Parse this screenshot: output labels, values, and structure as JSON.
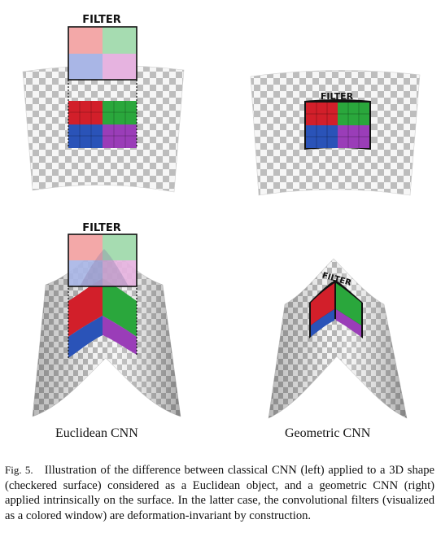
{
  "panels": {
    "top_left": {
      "filter_label": "FILTER"
    },
    "top_right": {
      "filter_label": "FILTER"
    },
    "bottom_left": {
      "filter_label": "FILTER"
    },
    "bottom_right": {
      "filter_label": "FILTER"
    }
  },
  "captions": {
    "left": "Euclidean CNN",
    "right": "Geometric CNN"
  },
  "figure_caption": {
    "label": "Fig. 5.",
    "text": "Illustration of the difference between classical CNN (left) applied to a 3D shape (checkered surface) considered as a Euclidean object, and a geometric CNN (right) applied intrinsically on the surface. In the latter case, the convolutional filters (visualized as a colored window) are deformation-invariant by construction."
  },
  "colors": {
    "checker_light": "#f6f6f6",
    "checker_dark": "#bdbdbd",
    "red": "#d21f2a",
    "green": "#2aa73c",
    "blue": "#2a53b8",
    "purple": "#9a3db8",
    "outline": "#111111"
  }
}
